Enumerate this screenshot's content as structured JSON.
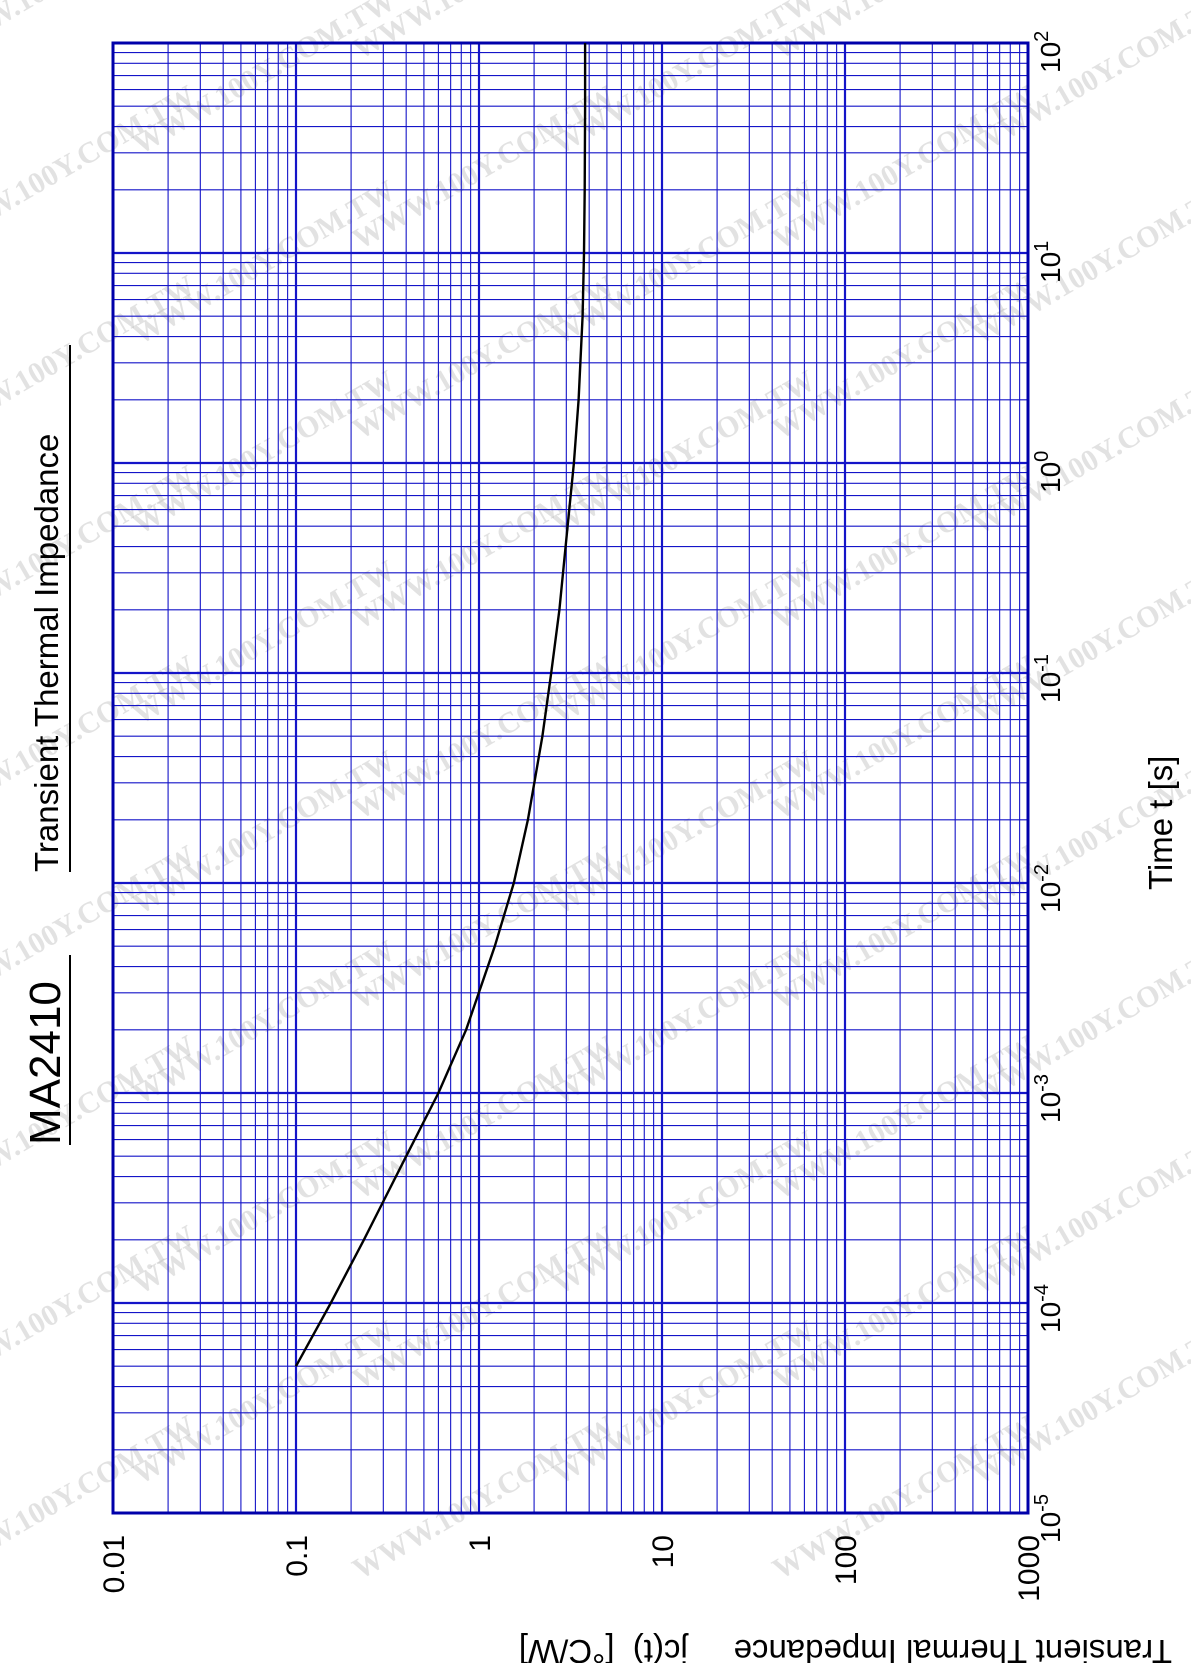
{
  "watermark": "WWW.100Y.COM.TW",
  "header": {
    "part_number": "MA2410",
    "subtitle": "Transient  Thermal  Impedance"
  },
  "chart_data": {
    "type": "line",
    "title": "Transient  Thermal  Impedance",
    "xlabel": "Time  t  [s]",
    "ylabel": "Transient Thermal Impedance     jc(t)  [°C/W]",
    "x_scale": "log",
    "y_scale": "log",
    "xlim": [
      1e-05,
      100
    ],
    "ylim": [
      0.01,
      1000
    ],
    "grid": true,
    "orientation": "rotated-90",
    "x_ticks": [
      {
        "value": 1e-05,
        "base": "10",
        "exp": "-5"
      },
      {
        "value": 0.0001,
        "base": "10",
        "exp": "-4"
      },
      {
        "value": 0.001,
        "base": "10",
        "exp": "-3"
      },
      {
        "value": 0.01,
        "base": "10",
        "exp": "-2"
      },
      {
        "value": 0.1,
        "base": "10",
        "exp": "-1"
      },
      {
        "value": 1,
        "base": "10",
        "exp": "0"
      },
      {
        "value": 10,
        "base": "10",
        "exp": "1"
      },
      {
        "value": 100,
        "base": "10",
        "exp": "2"
      }
    ],
    "y_ticks": [
      {
        "value": 0.01,
        "label": "0.01"
      },
      {
        "value": 0.1,
        "label": "0.1"
      },
      {
        "value": 1,
        "label": "1"
      },
      {
        "value": 10,
        "label": "10"
      },
      {
        "value": 100,
        "label": "100"
      },
      {
        "value": 1000,
        "label": "1000"
      }
    ],
    "series": [
      {
        "x": [
          5e-05,
          0.0001,
          0.0002,
          0.0005,
          0.001,
          0.002,
          0.005,
          0.01,
          0.02,
          0.05,
          0.1,
          0.2,
          0.5,
          1,
          2,
          5,
          10,
          20,
          50,
          100
        ],
        "y": [
          0.1,
          0.155,
          0.235,
          0.4,
          0.6,
          0.85,
          1.22,
          1.55,
          1.85,
          2.22,
          2.48,
          2.75,
          3.05,
          3.3,
          3.5,
          3.68,
          3.75,
          3.78,
          3.8,
          3.8
        ]
      }
    ],
    "colors": {
      "grid": "#1414c8",
      "frame": "#0000aa",
      "curve": "#000000",
      "text": "#000000"
    }
  }
}
